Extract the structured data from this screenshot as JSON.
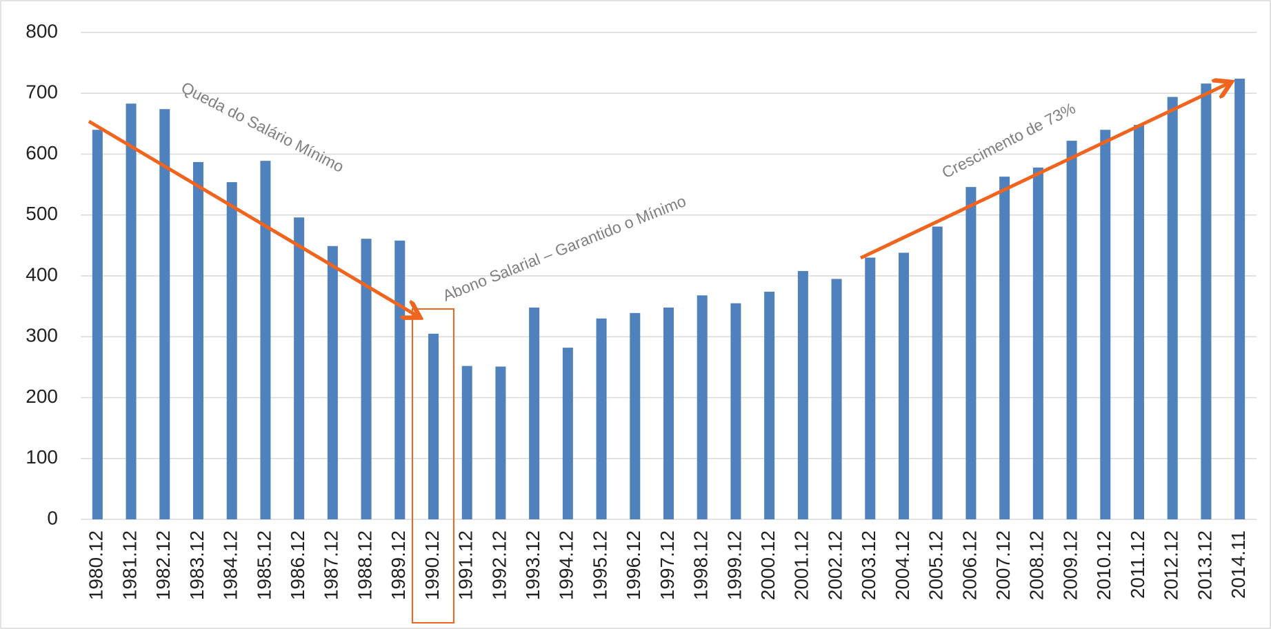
{
  "chart_data": {
    "type": "bar",
    "categories": [
      "1980.12",
      "1981.12",
      "1982.12",
      "1983.12",
      "1984.12",
      "1985.12",
      "1986.12",
      "1987.12",
      "1988.12",
      "1989.12",
      "1990.12",
      "1991.12",
      "1992.12",
      "1993.12",
      "1994.12",
      "1995.12",
      "1996.12",
      "1997.12",
      "1998.12",
      "1999.12",
      "2000.12",
      "2001.12",
      "2002.12",
      "2003.12",
      "2004.12",
      "2005.12",
      "2006.12",
      "2007.12",
      "2008.12",
      "2009.12",
      "2010.12",
      "2011.12",
      "2012.12",
      "2013.12",
      "2014.11"
    ],
    "values": [
      640,
      683,
      674,
      587,
      554,
      589,
      496,
      449,
      461,
      458,
      305,
      252,
      251,
      348,
      282,
      330,
      339,
      348,
      368,
      355,
      374,
      408,
      395,
      430,
      438,
      481,
      546,
      563,
      578,
      622,
      640,
      648,
      694,
      716,
      724
    ],
    "color": "#4f81bd",
    "ylim": [
      0,
      800
    ],
    "yticks": [
      0,
      100,
      200,
      300,
      400,
      500,
      600,
      700,
      800
    ],
    "grid": true,
    "annotations": [
      "Queda do Salário Mínimo",
      "Abono Salarial – Garantido o Mínimo",
      "Crescimento de 73%"
    ]
  }
}
